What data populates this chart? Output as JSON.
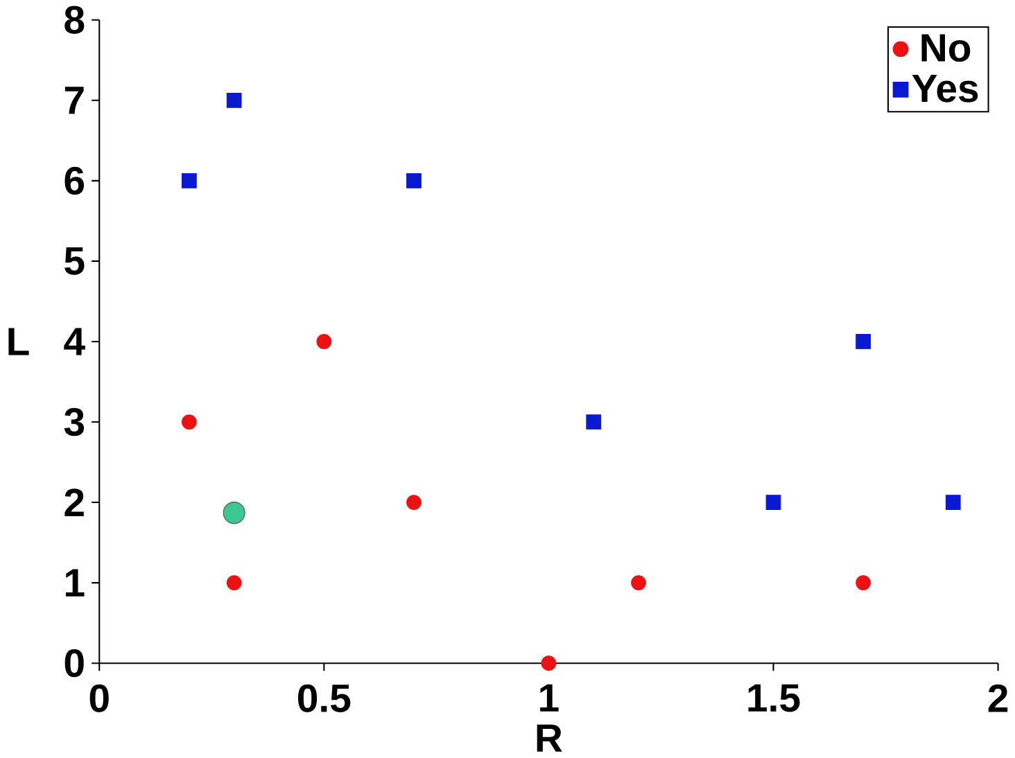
{
  "chart_data": {
    "type": "scatter",
    "xlabel": "R",
    "ylabel": "L",
    "xlim": [
      0,
      2
    ],
    "ylim": [
      0,
      8
    ],
    "xticks": [
      0,
      0.5,
      1,
      1.5,
      2
    ],
    "yticks": [
      0,
      1,
      2,
      3,
      4,
      5,
      6,
      7,
      8
    ],
    "grid": false,
    "legend": "top right",
    "series": [
      {
        "name": "No",
        "color": "#ee1111",
        "marker": "circle",
        "x": [
          0.2,
          0.3,
          0.5,
          0.7,
          1.0,
          1.2,
          1.7
        ],
        "values": [
          3,
          1,
          4,
          2,
          0,
          1,
          1
        ]
      },
      {
        "name": "Yes",
        "color": "#0a1ad0",
        "marker": "square",
        "x": [
          0.2,
          0.3,
          0.7,
          1.1,
          1.5,
          1.7,
          1.9
        ],
        "values": [
          6,
          7,
          6,
          3,
          2,
          4,
          2
        ]
      },
      {
        "color": "#3cc890",
        "marker": "circle",
        "x": [
          0.3
        ],
        "values": [
          1.87
        ]
      }
    ]
  }
}
